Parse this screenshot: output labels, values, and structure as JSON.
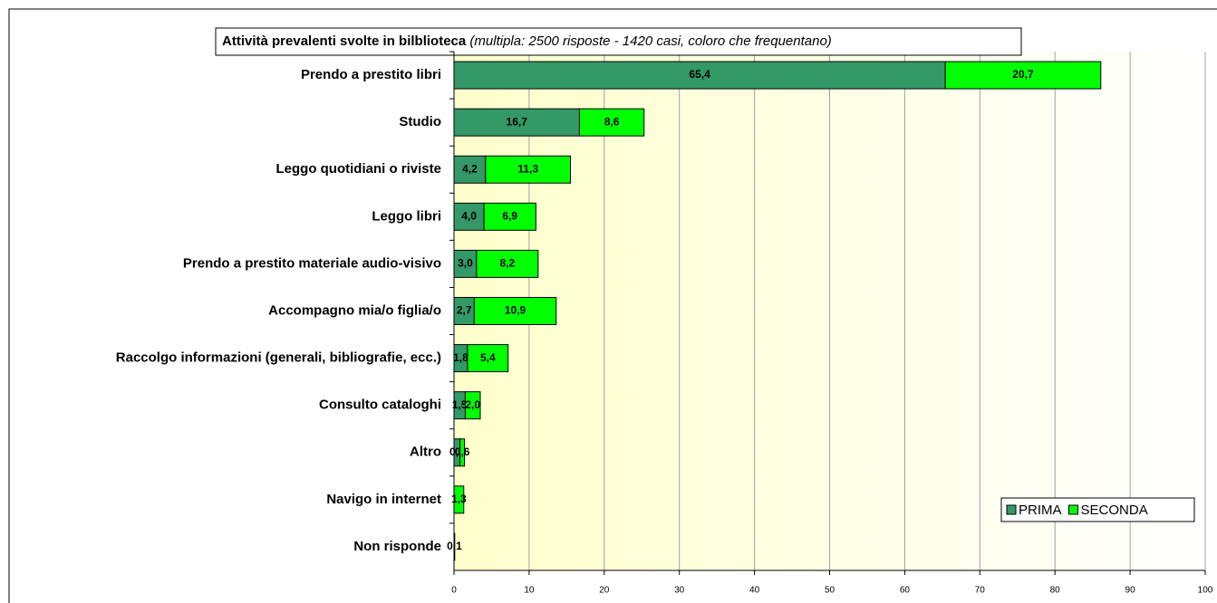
{
  "chart_data": {
    "type": "stacked_barh",
    "title": "Attività prevalenti svolte in bilblioteca",
    "subtitle": "(multipla: 2500 risposte - 1420 casi, coloro che frequentano)",
    "categories": [
      "Prendo a prestito libri",
      "Studio",
      "Leggo quotidiani o riviste",
      "Leggo libri",
      "Prendo a prestito materiale audio-visivo",
      "Accompagno mia/o figlia/o",
      "Raccolgo informazioni (generali, bibliografie, ecc.)",
      "Consulto cataloghi",
      "Altro",
      "Navigo in internet",
      "Non risponde"
    ],
    "series": [
      {
        "name": "PRIMA",
        "color": "#339966",
        "values": [
          65.4,
          16.7,
          4.2,
          4.0,
          3.0,
          2.7,
          1.8,
          1.5,
          0.8,
          null,
          null
        ],
        "value_labels": [
          "65,4",
          "16,7",
          "4,2",
          "4,0",
          "3,0",
          "2,7",
          "1,8",
          "1,5",
          "0,8",
          null,
          null
        ]
      },
      {
        "name": "SECONDA",
        "color": "#00ff00",
        "values": [
          20.7,
          8.6,
          11.3,
          6.9,
          8.2,
          10.9,
          5.4,
          2.0,
          0.6,
          1.3,
          0.1
        ],
        "value_labels": [
          "20,7",
          "8,6",
          "11,3",
          "6,9",
          "8,2",
          "10,9",
          "5,4",
          "2,0",
          "0,6",
          "1,3",
          "0,1"
        ]
      }
    ],
    "xlim": [
      0,
      100
    ],
    "xticks": [
      0,
      10,
      20,
      30,
      40,
      50,
      60,
      70,
      80,
      90,
      100
    ],
    "grid": true,
    "legend": "lower right"
  }
}
